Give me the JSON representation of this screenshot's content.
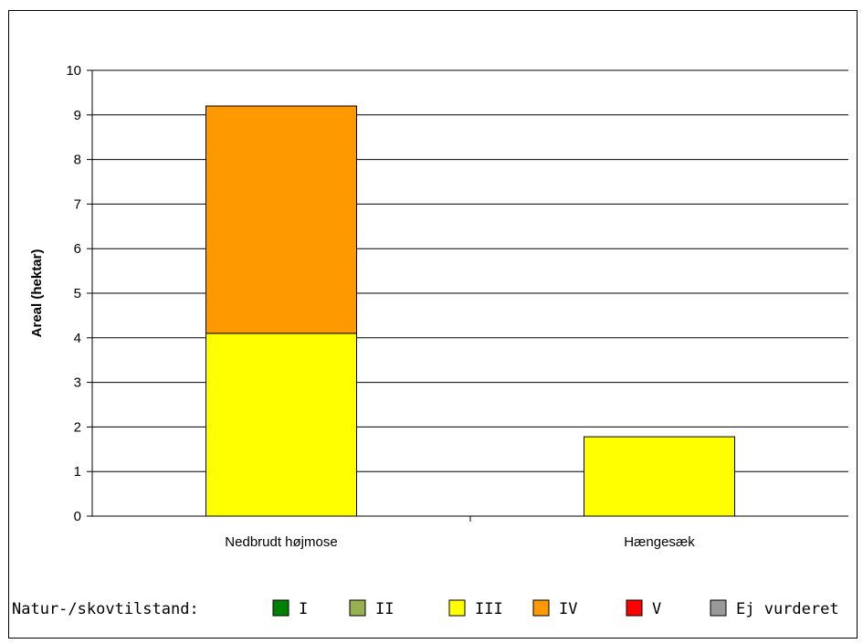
{
  "chart_data": {
    "type": "bar",
    "stacked": true,
    "categories": [
      "Nedbrudt højmose",
      "Hængesæk"
    ],
    "series": [
      {
        "name": "I",
        "color": "#008000",
        "values": [
          0,
          0
        ]
      },
      {
        "name": "II",
        "color": "#99B050",
        "values": [
          0,
          0
        ]
      },
      {
        "name": "III",
        "color": "#FFFF00",
        "values": [
          4.1,
          1.78
        ]
      },
      {
        "name": "IV",
        "color": "#FF9900",
        "values": [
          5.1,
          0
        ]
      },
      {
        "name": "V",
        "color": "#FF0000",
        "values": [
          0,
          0
        ]
      },
      {
        "name": "Ej vurderet",
        "color": "#999999",
        "values": [
          0,
          0
        ]
      }
    ],
    "title": "",
    "xlabel": "",
    "ylabel": "Areal (hektar)",
    "ylim": [
      0,
      10
    ],
    "yticks": [
      0,
      1,
      2,
      3,
      4,
      5,
      6,
      7,
      8,
      9,
      10
    ],
    "grid": true,
    "legend_title": "Natur-/skovtilstand:",
    "legend_position": "bottom"
  }
}
